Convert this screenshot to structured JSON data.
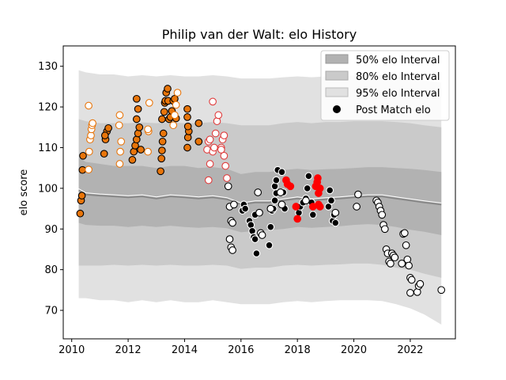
{
  "chart_data": {
    "type": "scatter",
    "title": "Philip van der Walt: elo History",
    "xlabel": "",
    "ylabel": "elo score",
    "xlim": [
      2009.7,
      2023.6
    ],
    "ylim": [
      63,
      135
    ],
    "xticks": [
      2010,
      2012,
      2014,
      2016,
      2018,
      2020,
      2022
    ],
    "yticks": [
      70,
      80,
      90,
      100,
      110,
      120,
      130
    ],
    "legend": {
      "position": "top-right",
      "entries": [
        "50% elo Interval",
        "80% elo Interval",
        "95% elo Interval",
        "Post Match elo"
      ]
    },
    "colors": {
      "band95": "#e1e1e1",
      "band80": "#cacaca",
      "band50": "#b2b2b2",
      "mean_line": "#888888",
      "highlight_line": "#ffffff",
      "orange": "#e8750a",
      "red": "#e03b3b",
      "bright_red": "#ff0000",
      "black": "#000000",
      "white": "#ffffff"
    },
    "bands": {
      "x": [
        2010.25,
        2010.5,
        2011,
        2011.5,
        2012,
        2012.5,
        2013,
        2013.5,
        2014,
        2014.5,
        2015,
        2015.5,
        2016,
        2016.5,
        2017,
        2017.5,
        2018,
        2018.5,
        2019,
        2019.5,
        2020,
        2020.5,
        2021,
        2021.5,
        2022,
        2022.5,
        2023.1
      ],
      "mean": [
        99.5,
        98.5,
        98.2,
        98,
        97.8,
        98,
        97.5,
        98,
        97.8,
        97.5,
        97.8,
        97.3,
        96,
        96.5,
        96.5,
        97,
        97.5,
        97,
        97.3,
        97.5,
        97.8,
        98,
        98,
        97.5,
        97,
        96.5,
        96
      ],
      "p50_low": [
        91.5,
        91,
        90.8,
        90.8,
        90.5,
        90.8,
        90.5,
        90.8,
        90.5,
        90.3,
        90.5,
        90.2,
        89.2,
        89.5,
        89.7,
        90,
        90.5,
        90.3,
        90.5,
        90.7,
        91,
        91.2,
        91,
        90.5,
        89.8,
        89.3,
        88.5
      ],
      "p50_high": [
        107.5,
        106.5,
        106,
        105.5,
        105.5,
        105.5,
        105,
        105.5,
        105.5,
        105,
        105.2,
        104.8,
        103.5,
        104,
        104,
        104.5,
        104.8,
        104.5,
        104.7,
        104.8,
        105,
        105.2,
        105.2,
        105,
        104.8,
        104.5,
        104
      ],
      "p80_low": [
        81,
        81,
        81,
        81.2,
        81,
        81.2,
        81,
        81.2,
        81,
        81,
        81.2,
        81,
        80.2,
        80.5,
        80.5,
        81,
        81.2,
        81,
        81.2,
        81.3,
        81.5,
        81.5,
        81.2,
        80.5,
        80,
        79,
        78
      ],
      "p80_high": [
        117,
        116.5,
        116,
        116,
        116,
        116.2,
        116,
        116.2,
        116,
        116,
        116.3,
        116,
        115.5,
        115.5,
        115.5,
        116,
        116.3,
        116,
        116.3,
        116.3,
        116.5,
        116.5,
        116.5,
        116.3,
        116,
        115.5,
        115
      ],
      "p95_low": [
        73,
        73,
        72.5,
        72.5,
        72,
        72.5,
        72,
        72.5,
        72,
        72,
        72.5,
        72,
        71.5,
        71.5,
        71.5,
        72,
        72.3,
        72,
        72.3,
        72.5,
        72.5,
        72.5,
        72.3,
        71.5,
        70.5,
        69,
        66.5
      ],
      "p95_high": [
        129,
        128.5,
        128,
        128,
        127.5,
        127.8,
        127.5,
        127.8,
        127.5,
        127.5,
        127.8,
        127.5,
        127,
        127,
        127,
        127.3,
        127.5,
        127.3,
        127.5,
        127.5,
        127.8,
        127.8,
        127.8,
        127.5,
        127,
        126.5,
        126
      ]
    },
    "series": [
      {
        "style": "orange-filled",
        "points": [
          [
            2010.3,
            93.8
          ],
          [
            2010.33,
            97
          ],
          [
            2010.36,
            98.2
          ],
          [
            2010.38,
            104.5
          ],
          [
            2010.4,
            108
          ],
          [
            2011.15,
            108.5
          ],
          [
            2011.2,
            112
          ],
          [
            2011.25,
            114
          ],
          [
            2011.3,
            114.8
          ],
          [
            2011.18,
            113
          ],
          [
            2012.15,
            107
          ],
          [
            2012.2,
            109
          ],
          [
            2012.25,
            110.5
          ],
          [
            2012.3,
            112
          ],
          [
            2012.35,
            113.5
          ],
          [
            2012.4,
            115
          ],
          [
            2012.45,
            109.5
          ],
          [
            2012.3,
            117
          ],
          [
            2012.35,
            119.5
          ],
          [
            2012.3,
            122
          ],
          [
            2013.15,
            104.2
          ],
          [
            2013.18,
            107.3
          ],
          [
            2013.2,
            109.3
          ],
          [
            2013.22,
            111.5
          ],
          [
            2013.25,
            113.5
          ],
          [
            2013.2,
            117
          ],
          [
            2013.28,
            118.8
          ],
          [
            2013.3,
            121
          ],
          [
            2013.32,
            121.5
          ],
          [
            2013.35,
            123.5
          ],
          [
            2013.4,
            124.5
          ],
          [
            2013.42,
            121.5
          ],
          [
            2013.45,
            117
          ],
          [
            2013.5,
            117.5
          ],
          [
            2013.55,
            119
          ],
          [
            2013.6,
            121.5
          ],
          [
            2013.65,
            122
          ],
          [
            2013.7,
            117.2
          ],
          [
            2014.1,
            110
          ],
          [
            2014.12,
            112.5
          ],
          [
            2014.15,
            114
          ],
          [
            2014.12,
            115.2
          ],
          [
            2014.1,
            117.5
          ],
          [
            2014.1,
            119.5
          ],
          [
            2014.5,
            111.5
          ],
          [
            2014.5,
            116
          ]
        ]
      },
      {
        "style": "orange-hollow",
        "points": [
          [
            2010.6,
            104.6
          ],
          [
            2010.62,
            109
          ],
          [
            2010.65,
            112
          ],
          [
            2010.68,
            113
          ],
          [
            2010.7,
            114.5
          ],
          [
            2010.72,
            115.5
          ],
          [
            2010.74,
            116
          ],
          [
            2010.6,
            120.3
          ],
          [
            2011.7,
            106
          ],
          [
            2011.72,
            109
          ],
          [
            2011.75,
            111.5
          ],
          [
            2011.68,
            115.5
          ],
          [
            2011.7,
            118
          ],
          [
            2012.7,
            109
          ],
          [
            2012.72,
            114
          ],
          [
            2012.7,
            114.5
          ],
          [
            2012.75,
            121
          ],
          [
            2013.6,
            115.5
          ],
          [
            2013.65,
            118
          ],
          [
            2013.7,
            120.5
          ],
          [
            2013.75,
            123.5
          ]
        ]
      },
      {
        "style": "red-hollow",
        "points": [
          [
            2014.8,
            109.5
          ],
          [
            2014.85,
            111.5
          ],
          [
            2014.9,
            112
          ],
          [
            2015,
            109
          ],
          [
            2015.05,
            110
          ],
          [
            2015.1,
            113.5
          ],
          [
            2015.15,
            116.5
          ],
          [
            2015.2,
            118
          ],
          [
            2015.3,
            110
          ],
          [
            2015.35,
            112
          ],
          [
            2015.4,
            113
          ],
          [
            2015.3,
            109.5
          ],
          [
            2015.4,
            108
          ],
          [
            2015.45,
            105.5
          ],
          [
            2014.85,
            102
          ],
          [
            2014.9,
            106
          ],
          [
            2015.5,
            102.5
          ],
          [
            2015.0,
            121.3
          ]
        ]
      },
      {
        "style": "black-filled",
        "points": [
          [
            2016.05,
            94.5
          ],
          [
            2016.1,
            96
          ],
          [
            2016.15,
            95
          ],
          [
            2016.3,
            92
          ],
          [
            2016.35,
            91
          ],
          [
            2016.4,
            89.5
          ],
          [
            2016.45,
            88
          ],
          [
            2016.5,
            93.5
          ],
          [
            2016.55,
            84
          ],
          [
            2016.5,
            87.5
          ],
          [
            2017,
            86
          ],
          [
            2017.05,
            90.5
          ],
          [
            2017.1,
            94.5
          ],
          [
            2017.15,
            95
          ],
          [
            2017.2,
            97
          ],
          [
            2017.25,
            98.8
          ],
          [
            2017.2,
            100.5
          ],
          [
            2017.25,
            102
          ],
          [
            2017.3,
            104.5
          ],
          [
            2017.45,
            104
          ],
          [
            2017.5,
            99
          ],
          [
            2017.55,
            95
          ],
          [
            2018.05,
            94
          ],
          [
            2018.1,
            95.5
          ],
          [
            2018.2,
            96.5
          ],
          [
            2018.3,
            97.5
          ],
          [
            2018.35,
            100
          ],
          [
            2018.4,
            103
          ],
          [
            2018.5,
            96.5
          ],
          [
            2018.55,
            93.5
          ],
          [
            2019.1,
            95.5
          ],
          [
            2019.15,
            99.5
          ],
          [
            2019.2,
            97
          ],
          [
            2019.25,
            92
          ],
          [
            2019.3,
            93.5
          ],
          [
            2019.35,
            91.5
          ]
        ]
      },
      {
        "style": "black-hollow",
        "points": [
          [
            2015.55,
            100.5
          ],
          [
            2015.6,
            95.5
          ],
          [
            2015.65,
            92
          ],
          [
            2015.7,
            91.5
          ],
          [
            2015.6,
            87.5
          ],
          [
            2015.65,
            85.5
          ],
          [
            2015.7,
            84.8
          ],
          [
            2015.75,
            96
          ],
          [
            2016.6,
            99
          ],
          [
            2016.65,
            94
          ],
          [
            2016.7,
            89
          ],
          [
            2016.75,
            88.5
          ],
          [
            2017.05,
            95
          ],
          [
            2017.4,
            99
          ],
          [
            2017.45,
            96
          ],
          [
            2018.3,
            97
          ],
          [
            2019.35,
            94
          ],
          [
            2020.1,
            95.5
          ],
          [
            2020.15,
            98.5
          ],
          [
            2020.8,
            97
          ],
          [
            2020.85,
            96.5
          ],
          [
            2020.9,
            95.5
          ],
          [
            2020.95,
            94.5
          ],
          [
            2021.0,
            93.5
          ],
          [
            2021.05,
            91
          ],
          [
            2021.1,
            90
          ],
          [
            2021.15,
            85
          ],
          [
            2021.2,
            84
          ],
          [
            2021.25,
            82
          ],
          [
            2021.3,
            81.5
          ],
          [
            2021.35,
            84
          ],
          [
            2021.4,
            83.5
          ],
          [
            2021.45,
            83
          ],
          [
            2021.7,
            81.5
          ],
          [
            2021.75,
            88.8
          ],
          [
            2021.8,
            89
          ],
          [
            2021.85,
            86
          ],
          [
            2021.9,
            82.5
          ],
          [
            2021.95,
            81
          ],
          [
            2022.0,
            78
          ],
          [
            2022.05,
            77.5
          ],
          [
            2022.0,
            74.3
          ],
          [
            2022.25,
            74.5
          ],
          [
            2022.3,
            76
          ],
          [
            2022.35,
            76.5
          ],
          [
            2023.1,
            75
          ]
        ]
      },
      {
        "style": "red-filled",
        "points": [
          [
            2017.6,
            102
          ],
          [
            2017.65,
            101
          ],
          [
            2017.75,
            100.5
          ],
          [
            2017.95,
            95.5
          ],
          [
            2018.0,
            92.5
          ],
          [
            2018.55,
            95.5
          ],
          [
            2018.65,
            100.5
          ],
          [
            2018.7,
            101.5
          ],
          [
            2018.72,
            102.5
          ],
          [
            2018.75,
            98.8
          ],
          [
            2018.8,
            100
          ],
          [
            2018.75,
            96
          ],
          [
            2018.8,
            95.5
          ]
        ]
      }
    ]
  }
}
